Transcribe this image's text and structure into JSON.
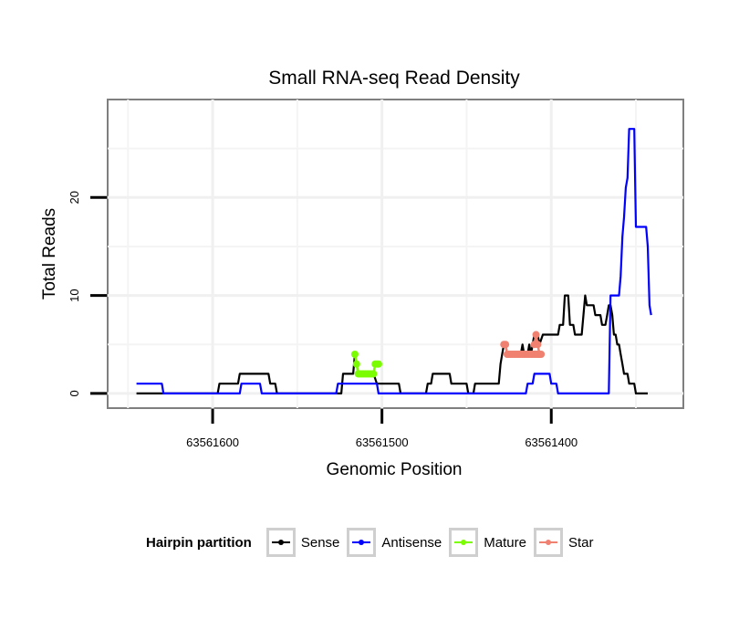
{
  "chart_data": {
    "type": "line",
    "title": "Small RNA-seq Read Density",
    "xlabel": "Genomic Position",
    "ylabel": "Total Reads",
    "x_reversed": true,
    "xlim": [
      63561662,
      63561322
    ],
    "ylim": [
      -1.5,
      30
    ],
    "x_ticks": [
      63561600,
      63561500,
      63561400
    ],
    "x_tick_labels": [
      "63561600",
      "63561500",
      "63561400"
    ],
    "y_ticks": [
      0,
      10,
      20
    ],
    "y_tick_labels": [
      "0",
      "10",
      "20"
    ],
    "grid": true,
    "legend_position": "bottom",
    "legend_title": "Hairpin partition",
    "series": [
      {
        "name": "Sense",
        "color": "#000000",
        "style": "line",
        "points": [
          [
            63561645,
            0
          ],
          [
            63561597,
            0
          ],
          [
            63561596,
            1
          ],
          [
            63561585,
            1
          ],
          [
            63561584,
            2
          ],
          [
            63561567,
            2
          ],
          [
            63561566,
            1
          ],
          [
            63561563,
            1
          ],
          [
            63561562,
            0
          ],
          [
            63561524,
            0
          ],
          [
            63561523,
            2
          ],
          [
            63561517,
            2
          ],
          [
            63561516,
            4
          ],
          [
            63561515,
            3
          ],
          [
            63561514,
            2
          ],
          [
            63561505,
            2
          ],
          [
            63561503,
            1
          ],
          [
            63561490,
            1
          ],
          [
            63561489,
            0
          ],
          [
            63561474,
            0
          ],
          [
            63561473,
            1
          ],
          [
            63561471,
            1
          ],
          [
            63561470,
            2
          ],
          [
            63561460,
            2
          ],
          [
            63561459,
            1
          ],
          [
            63561450,
            1
          ],
          [
            63561449,
            0
          ],
          [
            63561446,
            0
          ],
          [
            63561445,
            1
          ],
          [
            63561431,
            1
          ],
          [
            63561430,
            3
          ],
          [
            63561429,
            4
          ],
          [
            63561428,
            5
          ],
          [
            63561427,
            5
          ],
          [
            63561426,
            4
          ],
          [
            63561418,
            4
          ],
          [
            63561417,
            5
          ],
          [
            63561416,
            4
          ],
          [
            63561414,
            4
          ],
          [
            63561413,
            5
          ],
          [
            63561412,
            4
          ],
          [
            63561411,
            5
          ],
          [
            63561410,
            6
          ],
          [
            63561408,
            6
          ],
          [
            63561407,
            5
          ],
          [
            63561405,
            6
          ],
          [
            63561396,
            6
          ],
          [
            63561395,
            7
          ],
          [
            63561393,
            7
          ],
          [
            63561392,
            10
          ],
          [
            63561390,
            10
          ],
          [
            63561389,
            7
          ],
          [
            63561387,
            7
          ],
          [
            63561386,
            6
          ],
          [
            63561382,
            6
          ],
          [
            63561381,
            8
          ],
          [
            63561380,
            10
          ],
          [
            63561379,
            9
          ],
          [
            63561375,
            9
          ],
          [
            63561374,
            8
          ],
          [
            63561371,
            8
          ],
          [
            63561370,
            7
          ],
          [
            63561368,
            7
          ],
          [
            63561367,
            8
          ],
          [
            63561366,
            9
          ],
          [
            63561365,
            9
          ],
          [
            63561364,
            8
          ],
          [
            63561363,
            6
          ],
          [
            63561362,
            6
          ],
          [
            63561361,
            5
          ],
          [
            63561360,
            5
          ],
          [
            63561359,
            4
          ],
          [
            63561358,
            3
          ],
          [
            63561357,
            2
          ],
          [
            63561355,
            2
          ],
          [
            63561354,
            1
          ],
          [
            63561351,
            1
          ],
          [
            63561350,
            0
          ],
          [
            63561343,
            0
          ]
        ]
      },
      {
        "name": "Antisense",
        "color": "#0000ff",
        "style": "line",
        "points": [
          [
            63561645,
            1
          ],
          [
            63561630,
            1
          ],
          [
            63561629,
            0
          ],
          [
            63561584,
            0
          ],
          [
            63561583,
            1
          ],
          [
            63561572,
            1
          ],
          [
            63561571,
            0
          ],
          [
            63561527,
            0
          ],
          [
            63561526,
            1
          ],
          [
            63561503,
            1
          ],
          [
            63561502,
            0
          ],
          [
            63561415,
            0
          ],
          [
            63561414,
            1
          ],
          [
            63561411,
            1
          ],
          [
            63561410,
            2
          ],
          [
            63561401,
            2
          ],
          [
            63561400,
            1
          ],
          [
            63561397,
            1
          ],
          [
            63561396,
            0
          ],
          [
            63561366,
            0
          ],
          [
            63561365,
            10
          ],
          [
            63561360,
            10
          ],
          [
            63561359,
            12
          ],
          [
            63561358,
            16
          ],
          [
            63561357,
            18
          ],
          [
            63561356,
            21
          ],
          [
            63561355,
            22
          ],
          [
            63561354,
            27
          ],
          [
            63561351,
            27
          ],
          [
            63561350,
            17
          ],
          [
            63561344,
            17
          ],
          [
            63561343,
            15
          ],
          [
            63561342,
            9
          ],
          [
            63561341,
            8
          ]
        ]
      },
      {
        "name": "Mature",
        "color": "#7cfc00",
        "style": "line-points",
        "segments": [
          [
            [
              63561516,
              4
            ],
            [
              63561515,
              3
            ],
            [
              63561514,
              2
            ],
            [
              63561513,
              2
            ],
            [
              63561512,
              2
            ],
            [
              63561511,
              2
            ],
            [
              63561510,
              2
            ],
            [
              63561509,
              2
            ],
            [
              63561508,
              2
            ],
            [
              63561507,
              2
            ],
            [
              63561506,
              2
            ],
            [
              63561505,
              2
            ],
            [
              63561504,
              3
            ],
            [
              63561503,
              3
            ],
            [
              63561502,
              3
            ]
          ]
        ]
      },
      {
        "name": "Star",
        "color": "#f08070",
        "style": "line-points",
        "segments": [
          [
            [
              63561428,
              5
            ],
            [
              63561427,
              5
            ],
            [
              63561426,
              4
            ],
            [
              63561425,
              4
            ],
            [
              63561424,
              4
            ],
            [
              63561423,
              4
            ],
            [
              63561422,
              4
            ],
            [
              63561421,
              4
            ],
            [
              63561420,
              4
            ],
            [
              63561419,
              4
            ],
            [
              63561418,
              4
            ],
            [
              63561417,
              4
            ],
            [
              63561416,
              4
            ],
            [
              63561415,
              4
            ],
            [
              63561414,
              4
            ],
            [
              63561413,
              4
            ],
            [
              63561412,
              4
            ],
            [
              63561411,
              4
            ],
            [
              63561410,
              4
            ],
            [
              63561409,
              4
            ],
            [
              63561408,
              4
            ],
            [
              63561407,
              4
            ],
            [
              63561406,
              4
            ]
          ],
          [
            [
              63561410,
              5
            ],
            [
              63561409,
              6
            ],
            [
              63561408,
              5
            ],
            [
              63561407,
              4
            ]
          ]
        ]
      }
    ]
  }
}
